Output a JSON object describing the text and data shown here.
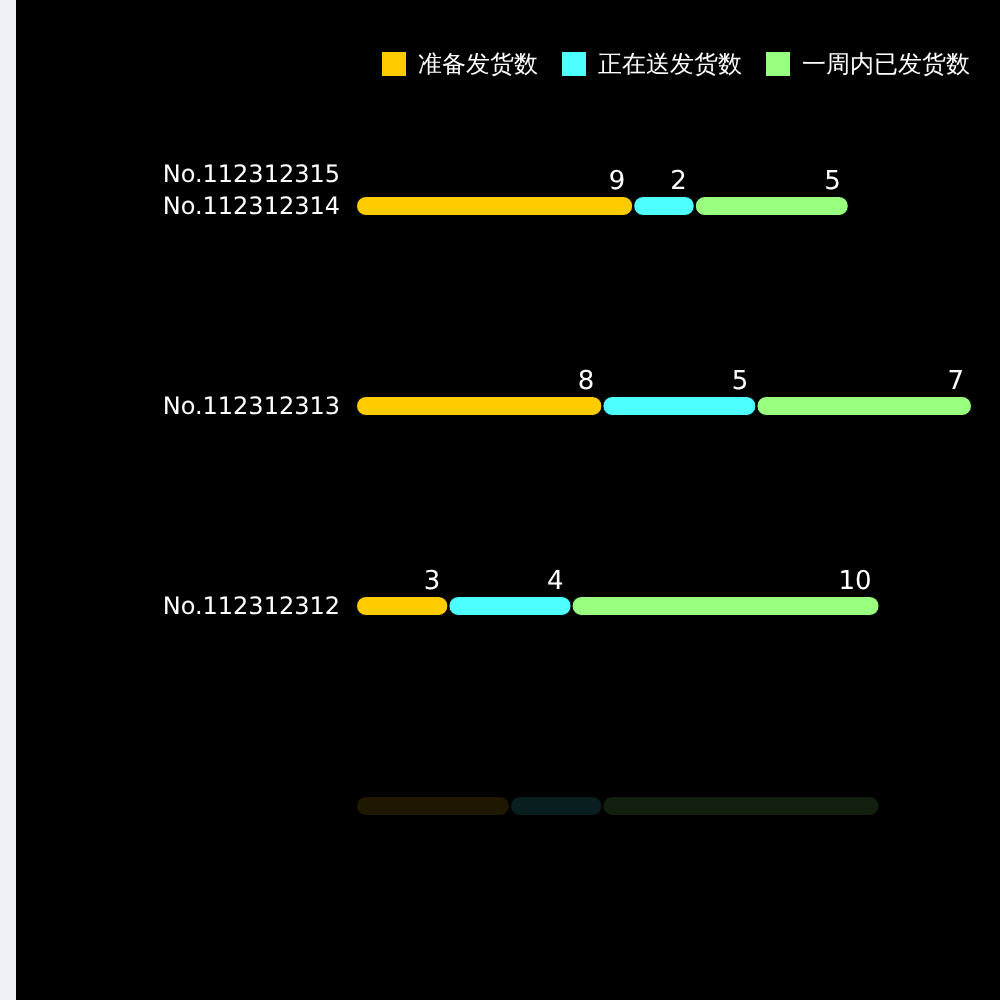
{
  "chart_data": {
    "type": "bar",
    "orientation": "horizontal",
    "stacked": true,
    "categories": [
      "No.112312314",
      "No.112312313",
      "No.112312312",
      null
    ],
    "series": [
      {
        "name": "准备发货数",
        "color": "#ffcc00",
        "colors": [
          "#ffcc00",
          "#ffcc00",
          "#ffcc00",
          "#1f1800"
        ],
        "values": [
          9,
          8,
          3,
          5
        ],
        "value_labels": [
          "9",
          "8",
          "3",
          null
        ]
      },
      {
        "name": "正在送发货数",
        "color": "#4dffff",
        "colors": [
          "#4dffff",
          "#4dffff",
          "#4dffff",
          "#091f1f"
        ],
        "values": [
          2,
          5,
          4,
          3
        ],
        "value_labels": [
          "2",
          "5",
          "4",
          null
        ]
      },
      {
        "name": "一周内已发货数",
        "color": "#99ff7f",
        "colors": [
          "#99ff7f",
          "#99ff7f",
          "#99ff7f",
          "#121f0f"
        ],
        "values": [
          5,
          7,
          10,
          9
        ],
        "value_labels": [
          "5",
          "7",
          "10",
          null
        ]
      }
    ],
    "legend": "top right",
    "tick_labels": "y",
    "annotations": [
      "No.112312315"
    ]
  }
}
